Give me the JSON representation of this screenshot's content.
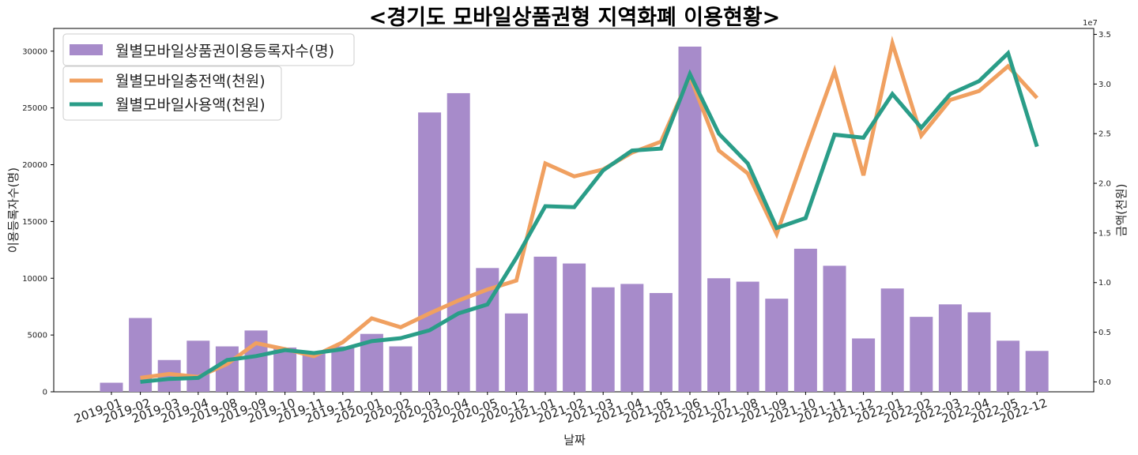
{
  "chart_data": {
    "type": "bar+line",
    "title": "<경기도 모바일상품권형 지역화폐 이용현황>",
    "xlabel": "날짜",
    "ylabel_left": "이용등록자수(명)",
    "ylabel_right": "금액(천원)",
    "right_axis_multiplier": "1e7",
    "categories": [
      "2019-01",
      "2019-02",
      "2019-03",
      "2019-04",
      "2019-08",
      "2019-09",
      "2019-10",
      "2019-11",
      "2019-12",
      "2020-01",
      "2020-02",
      "2020-03",
      "2020-04",
      "2020-05",
      "2020-12",
      "2021-01",
      "2021-02",
      "2021-03",
      "2021-04",
      "2021-05",
      "2021-06",
      "2021-07",
      "2021-08",
      "2021-09",
      "2021-10",
      "2021-11",
      "2021-12",
      "2022-01",
      "2022-02",
      "2022-03",
      "2022-04",
      "2022-05",
      "2022-12"
    ],
    "ylim_left": [
      0,
      32000
    ],
    "yticks_left": [
      0,
      5000,
      10000,
      15000,
      20000,
      25000,
      30000
    ],
    "ylim_right": [
      -0.1,
      3.56
    ],
    "yticks_right": [
      0.0,
      0.5,
      1.0,
      1.5,
      2.0,
      2.5,
      3.0,
      3.5
    ],
    "legend_location": "top-left",
    "bars": {
      "name": "월별모바일상품권이용등록자수(명)",
      "color": "#a78bca",
      "values": [
        800,
        6500,
        2800,
        4500,
        4000,
        5400,
        3900,
        3400,
        4000,
        5100,
        4000,
        24600,
        26300,
        10900,
        6900,
        11900,
        11300,
        9200,
        9500,
        8700,
        30400,
        10000,
        9700,
        8200,
        12600,
        11100,
        4700,
        9100,
        6600,
        7700,
        7000,
        4500,
        3600
      ]
    },
    "series": [
      {
        "name": "월별모바일충전액(천원)",
        "color": "#f0a060",
        "values": [
          null,
          0.04,
          0.08,
          0.05,
          0.18,
          0.39,
          0.33,
          0.26,
          0.4,
          0.64,
          0.55,
          0.69,
          0.82,
          0.93,
          1.02,
          2.2,
          2.07,
          2.14,
          2.31,
          2.42,
          3.08,
          2.33,
          2.1,
          1.49,
          2.32,
          3.13,
          2.08,
          3.41,
          2.48,
          2.84,
          2.93,
          3.18,
          2.86
        ]
      },
      {
        "name": "월별모바일사용액(천원)",
        "color": "#2a9d88",
        "values": [
          null,
          0.0,
          0.03,
          0.04,
          0.22,
          0.26,
          0.32,
          0.29,
          0.33,
          0.41,
          0.44,
          0.52,
          0.69,
          0.78,
          1.25,
          1.77,
          1.76,
          2.13,
          2.33,
          2.35,
          3.1,
          2.5,
          2.2,
          1.55,
          1.65,
          2.49,
          2.46,
          2.9,
          2.56,
          2.9,
          3.03,
          3.31,
          2.37
        ]
      }
    ]
  }
}
